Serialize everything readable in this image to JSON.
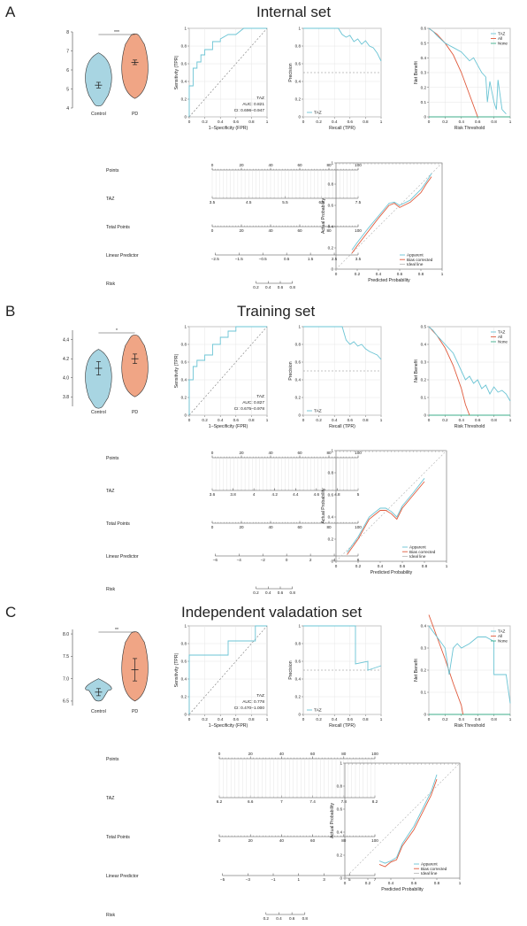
{
  "colors": {
    "control": "#a8d5e2",
    "pd": "#f0a585",
    "roc": "#6bc4d4",
    "red": "#e05a3c",
    "grey": "#999999",
    "green": "#3cae8a",
    "apparent": "#6bc4d4",
    "bias": "#e05a3c",
    "ideal": "#bbbbbb"
  },
  "common": {
    "violin_groups": [
      "Control",
      "PD"
    ],
    "roc_xlabel": "1−Specificity (FPR)",
    "roc_ylabel": "Sensitivity (TPR)",
    "pr_xlabel": "Recall (TPR)",
    "pr_ylabel": "Precision",
    "dca_xlabel": "Risk Threshold",
    "dca_ylabel": "Net Benefit",
    "dca_legend": [
      "TAZ",
      "All",
      "None"
    ],
    "calib_xlabel": "Predicted Probability",
    "calib_ylabel": "Actual Probability",
    "calib_legend": [
      "Apparent",
      "Bias corrected",
      "Ideal line"
    ],
    "nomo_rows": [
      "Points",
      "TAZ",
      "Total Points",
      "Linear Predictor",
      "Risk"
    ],
    "marker": "TAZ"
  },
  "panels": [
    {
      "letter": "A",
      "title": "Internal set",
      "chart_data": {
        "violin": {
          "type": "violin",
          "groups": [
            "Control",
            "PD"
          ],
          "ylim": [
            4,
            8
          ],
          "yticks": [
            4,
            5,
            6,
            7,
            8
          ],
          "means": [
            5.2,
            6.4
          ],
          "errors": [
            0.15,
            0.12
          ],
          "ranges": [
            [
              4.1,
              6.9
            ],
            [
              4.5,
              7.9
            ]
          ],
          "significance": "***"
        },
        "roc": {
          "type": "line",
          "auc": "AUC: 0.821",
          "ci": "CI: 0.696−0.947",
          "x": [
            0,
            0,
            0.05,
            0.05,
            0.1,
            0.1,
            0.15,
            0.15,
            0.2,
            0.2,
            0.3,
            0.3,
            0.4,
            0.4,
            0.5,
            0.6,
            0.7,
            0.75,
            0.8,
            0.9,
            1
          ],
          "y": [
            0,
            0.35,
            0.35,
            0.55,
            0.55,
            0.62,
            0.62,
            0.7,
            0.7,
            0.76,
            0.76,
            0.85,
            0.85,
            0.88,
            0.93,
            0.93,
            1,
            1,
            1,
            1,
            1
          ]
        },
        "pr": {
          "type": "line",
          "baseline": 0.5,
          "x": [
            0,
            0.05,
            0.1,
            0.2,
            0.3,
            0.4,
            0.45,
            0.5,
            0.55,
            0.6,
            0.65,
            0.7,
            0.75,
            0.8,
            0.85,
            0.9,
            0.95,
            1
          ],
          "y": [
            1,
            1,
            1,
            1,
            1,
            1,
            1,
            0.93,
            0.9,
            0.92,
            0.85,
            0.88,
            0.82,
            0.86,
            0.8,
            0.78,
            0.72,
            0.63
          ]
        },
        "dca": {
          "type": "line",
          "xlim": [
            0,
            1
          ],
          "ylim": [
            0,
            0.6
          ],
          "xticks": [
            0,
            0.2,
            0.4,
            0.6,
            0.8,
            1
          ],
          "yticks": [
            0,
            0.1,
            0.2,
            0.3,
            0.4,
            0.5,
            0.6
          ],
          "taz": {
            "x": [
              0,
              0.05,
              0.1,
              0.2,
              0.3,
              0.4,
              0.5,
              0.55,
              0.6,
              0.65,
              0.7,
              0.72,
              0.75,
              0.8,
              0.83,
              0.85,
              0.9,
              0.95
            ],
            "y": [
              0.6,
              0.58,
              0.55,
              0.5,
              0.47,
              0.44,
              0.38,
              0.4,
              0.35,
              0.3,
              0.27,
              0.1,
              0.24,
              0.1,
              0.05,
              0.25,
              0.05,
              0.02
            ]
          },
          "all": {
            "x": [
              0,
              0.1,
              0.2,
              0.3,
              0.4,
              0.5,
              0.6
            ],
            "y": [
              0.6,
              0.56,
              0.5,
              0.42,
              0.3,
              0.15,
              0
            ]
          }
        },
        "nomo": {
          "points": [
            0,
            20,
            40,
            60,
            80,
            100
          ],
          "taz": [
            "3.5",
            "4.5",
            "5.5",
            "6.5",
            "7.5"
          ],
          "total": [
            0,
            20,
            40,
            60,
            80,
            100
          ],
          "lp": [
            "−2.5",
            "−1.5",
            "−0.5",
            "0.5",
            "1.5",
            "2.5",
            "3.5"
          ],
          "risk": [
            "0.2",
            "0.4",
            "0.6",
            "0.8"
          ]
        },
        "calib": {
          "type": "line",
          "xlim": [
            0,
            1
          ],
          "ylim": [
            0,
            1
          ],
          "xticks": [
            0,
            0.2,
            0.4,
            0.6,
            0.8,
            1
          ],
          "yticks": [
            0,
            0.2,
            0.4,
            0.6,
            0.8,
            1
          ],
          "apparent": {
            "x": [
              0.15,
              0.2,
              0.3,
              0.4,
              0.5,
              0.55,
              0.6,
              0.7,
              0.8,
              0.85,
              0.9
            ],
            "y": [
              0.18,
              0.25,
              0.38,
              0.5,
              0.62,
              0.63,
              0.6,
              0.65,
              0.75,
              0.82,
              0.9
            ]
          },
          "bias": {
            "x": [
              0.15,
              0.2,
              0.3,
              0.4,
              0.5,
              0.55,
              0.6,
              0.7,
              0.8,
              0.85,
              0.9
            ],
            "y": [
              0.15,
              0.22,
              0.35,
              0.48,
              0.6,
              0.62,
              0.58,
              0.63,
              0.72,
              0.8,
              0.87
            ]
          }
        }
      }
    },
    {
      "letter": "B",
      "title": "Training set",
      "chart_data": {
        "violin": {
          "type": "violin",
          "groups": [
            "Control",
            "PD"
          ],
          "ylim": [
            3.7,
            4.5
          ],
          "yticks": [
            3.8,
            4.0,
            4.2,
            4.4
          ],
          "ytick_labels": [
            "3.8",
            "4.0",
            "4.2",
            "4.4"
          ],
          "means": [
            4.1,
            4.2
          ],
          "errors": [
            0.07,
            0.05
          ],
          "ranges": [
            [
              3.68,
              4.3
            ],
            [
              3.8,
              4.45
            ]
          ],
          "significance": "*"
        },
        "roc": {
          "type": "line",
          "auc": "AUC: 0.827",
          "ci": "CI: 0.675−0.978",
          "x": [
            0,
            0,
            0.05,
            0.05,
            0.1,
            0.1,
            0.2,
            0.2,
            0.3,
            0.3,
            0.4,
            0.4,
            0.5,
            0.5,
            0.6,
            0.6,
            0.7,
            1
          ],
          "y": [
            0,
            0.4,
            0.4,
            0.55,
            0.55,
            0.62,
            0.62,
            0.68,
            0.68,
            0.8,
            0.8,
            0.88,
            0.88,
            0.95,
            0.95,
            1,
            1,
            1
          ]
        },
        "pr": {
          "type": "line",
          "baseline": 0.5,
          "x": [
            0,
            0.05,
            0.1,
            0.2,
            0.3,
            0.4,
            0.5,
            0.55,
            0.6,
            0.65,
            0.7,
            0.75,
            0.8,
            0.85,
            0.9,
            0.95,
            1
          ],
          "y": [
            1,
            1,
            1,
            1,
            1,
            1,
            1,
            0.85,
            0.8,
            0.83,
            0.78,
            0.8,
            0.75,
            0.72,
            0.7,
            0.68,
            0.63
          ]
        },
        "dca": {
          "type": "line",
          "xlim": [
            0,
            1
          ],
          "ylim": [
            0,
            0.5
          ],
          "xticks": [
            0,
            0.2,
            0.4,
            0.6,
            0.8,
            1
          ],
          "yticks": [
            0,
            0.1,
            0.2,
            0.3,
            0.4,
            0.5
          ],
          "taz": {
            "x": [
              0,
              0.05,
              0.1,
              0.2,
              0.3,
              0.35,
              0.4,
              0.45,
              0.5,
              0.55,
              0.6,
              0.65,
              0.7,
              0.75,
              0.8,
              0.85,
              0.9,
              0.95,
              1
            ],
            "y": [
              0.5,
              0.48,
              0.45,
              0.4,
              0.35,
              0.3,
              0.25,
              0.2,
              0.22,
              0.18,
              0.2,
              0.15,
              0.17,
              0.12,
              0.16,
              0.13,
              0.14,
              0.12,
              0.08
            ]
          },
          "all": {
            "x": [
              0,
              0.1,
              0.2,
              0.3,
              0.4,
              0.45,
              0.5
            ],
            "y": [
              0.5,
              0.45,
              0.38,
              0.28,
              0.15,
              0.06,
              0
            ]
          }
        },
        "nomo": {
          "points": [
            0,
            20,
            40,
            60,
            80,
            100
          ],
          "taz": [
            "3.6",
            "3.8",
            "4",
            "4.2",
            "4.4",
            "4.6",
            "4.8",
            "5"
          ],
          "total": [
            0,
            20,
            40,
            60,
            80,
            100
          ],
          "lp": [
            "−6",
            "−4",
            "−2",
            "0",
            "2",
            "4",
            "6"
          ],
          "risk": [
            "0.2",
            "0.4",
            "0.6",
            "0.8"
          ]
        },
        "calib": {
          "type": "line",
          "xlim": [
            0,
            1
          ],
          "ylim": [
            0,
            1
          ],
          "xticks": [
            0,
            0.2,
            0.4,
            0.6,
            0.8,
            1
          ],
          "yticks": [
            0,
            0.2,
            0.4,
            0.6,
            0.8,
            1
          ],
          "apparent": {
            "x": [
              0.1,
              0.2,
              0.3,
              0.4,
              0.45,
              0.5,
              0.55,
              0.6,
              0.7,
              0.8
            ],
            "y": [
              0.08,
              0.22,
              0.4,
              0.48,
              0.48,
              0.45,
              0.4,
              0.5,
              0.62,
              0.75
            ]
          },
          "bias": {
            "x": [
              0.1,
              0.2,
              0.3,
              0.4,
              0.45,
              0.5,
              0.55,
              0.6,
              0.7,
              0.8
            ],
            "y": [
              0.06,
              0.2,
              0.38,
              0.46,
              0.46,
              0.43,
              0.38,
              0.48,
              0.6,
              0.72
            ]
          }
        }
      }
    },
    {
      "letter": "C",
      "title": "Independent valadation set",
      "chart_data": {
        "violin": {
          "type": "violin",
          "groups": [
            "Control",
            "PD"
          ],
          "ylim": [
            6.4,
            8.1
          ],
          "yticks": [
            6.5,
            7.0,
            7.5,
            8.0
          ],
          "ytick_labels": [
            "6.5",
            "7.0",
            "7.5",
            "8.0"
          ],
          "means": [
            6.7,
            7.2
          ],
          "errors": [
            0.08,
            0.25
          ],
          "ranges": [
            [
              6.5,
              7.0
            ],
            [
              6.5,
              8.05
            ]
          ],
          "significance": "**"
        },
        "roc": {
          "type": "line",
          "auc": "AUC: 0.778",
          "ci": "CI: 0.470−1.000",
          "x": [
            0,
            0,
            0.05,
            0.5,
            0.5,
            0.85,
            0.85,
            1
          ],
          "y": [
            0,
            0.67,
            0.67,
            0.67,
            0.83,
            0.83,
            1,
            1
          ]
        },
        "pr": {
          "type": "line",
          "baseline": 0.5,
          "x": [
            0,
            0.67,
            0.67,
            0.83,
            0.83,
            0.9,
            1
          ],
          "y": [
            1,
            1,
            0.57,
            0.6,
            0.5,
            0.52,
            0.55
          ]
        },
        "dca": {
          "type": "line",
          "xlim": [
            0,
            1
          ],
          "ylim": [
            0,
            0.4
          ],
          "xticks": [
            0,
            0.2,
            0.4,
            0.6,
            0.8,
            1
          ],
          "yticks": [
            0,
            0.1,
            0.2,
            0.3,
            0.4
          ],
          "taz": {
            "x": [
              0,
              0.1,
              0.2,
              0.25,
              0.3,
              0.35,
              0.4,
              0.5,
              0.6,
              0.7,
              0.8,
              0.8,
              0.95,
              1
            ],
            "y": [
              0.4,
              0.35,
              0.3,
              0.18,
              0.3,
              0.32,
              0.3,
              0.32,
              0.35,
              0.35,
              0.33,
              0.18,
              0.18,
              0.05
            ]
          },
          "all": {
            "x": [
              0,
              0.1,
              0.2,
              0.3,
              0.4,
              0.42
            ],
            "y": [
              0.45,
              0.35,
              0.25,
              0.14,
              0.04,
              0
            ]
          }
        },
        "nomo": {
          "points": [
            0,
            20,
            40,
            60,
            80,
            100
          ],
          "taz": [
            "6.2",
            "6.6",
            "7",
            "7.4",
            "7.8",
            "8.2"
          ],
          "total": [
            0,
            20,
            40,
            60,
            80,
            100
          ],
          "lp": [
            "−5",
            "−3",
            "−1",
            "1",
            "3",
            "5",
            "7"
          ],
          "risk": [
            "0.2",
            "0.4",
            "0.6",
            "0.8"
          ]
        },
        "calib": {
          "type": "line",
          "xlim": [
            0,
            1
          ],
          "ylim": [
            0,
            1
          ],
          "xticks": [
            0,
            0.2,
            0.4,
            0.6,
            0.8,
            1
          ],
          "yticks": [
            0,
            0.2,
            0.4,
            0.6,
            0.8,
            1
          ],
          "apparent": {
            "x": [
              0.3,
              0.35,
              0.4,
              0.45,
              0.5,
              0.6,
              0.7,
              0.75,
              0.8
            ],
            "y": [
              0.15,
              0.13,
              0.15,
              0.18,
              0.3,
              0.45,
              0.65,
              0.75,
              0.9
            ]
          },
          "bias": {
            "x": [
              0.3,
              0.35,
              0.4,
              0.45,
              0.5,
              0.6,
              0.7,
              0.75,
              0.8
            ],
            "y": [
              0.12,
              0.1,
              0.14,
              0.16,
              0.28,
              0.42,
              0.62,
              0.72,
              0.86
            ]
          }
        }
      }
    }
  ]
}
